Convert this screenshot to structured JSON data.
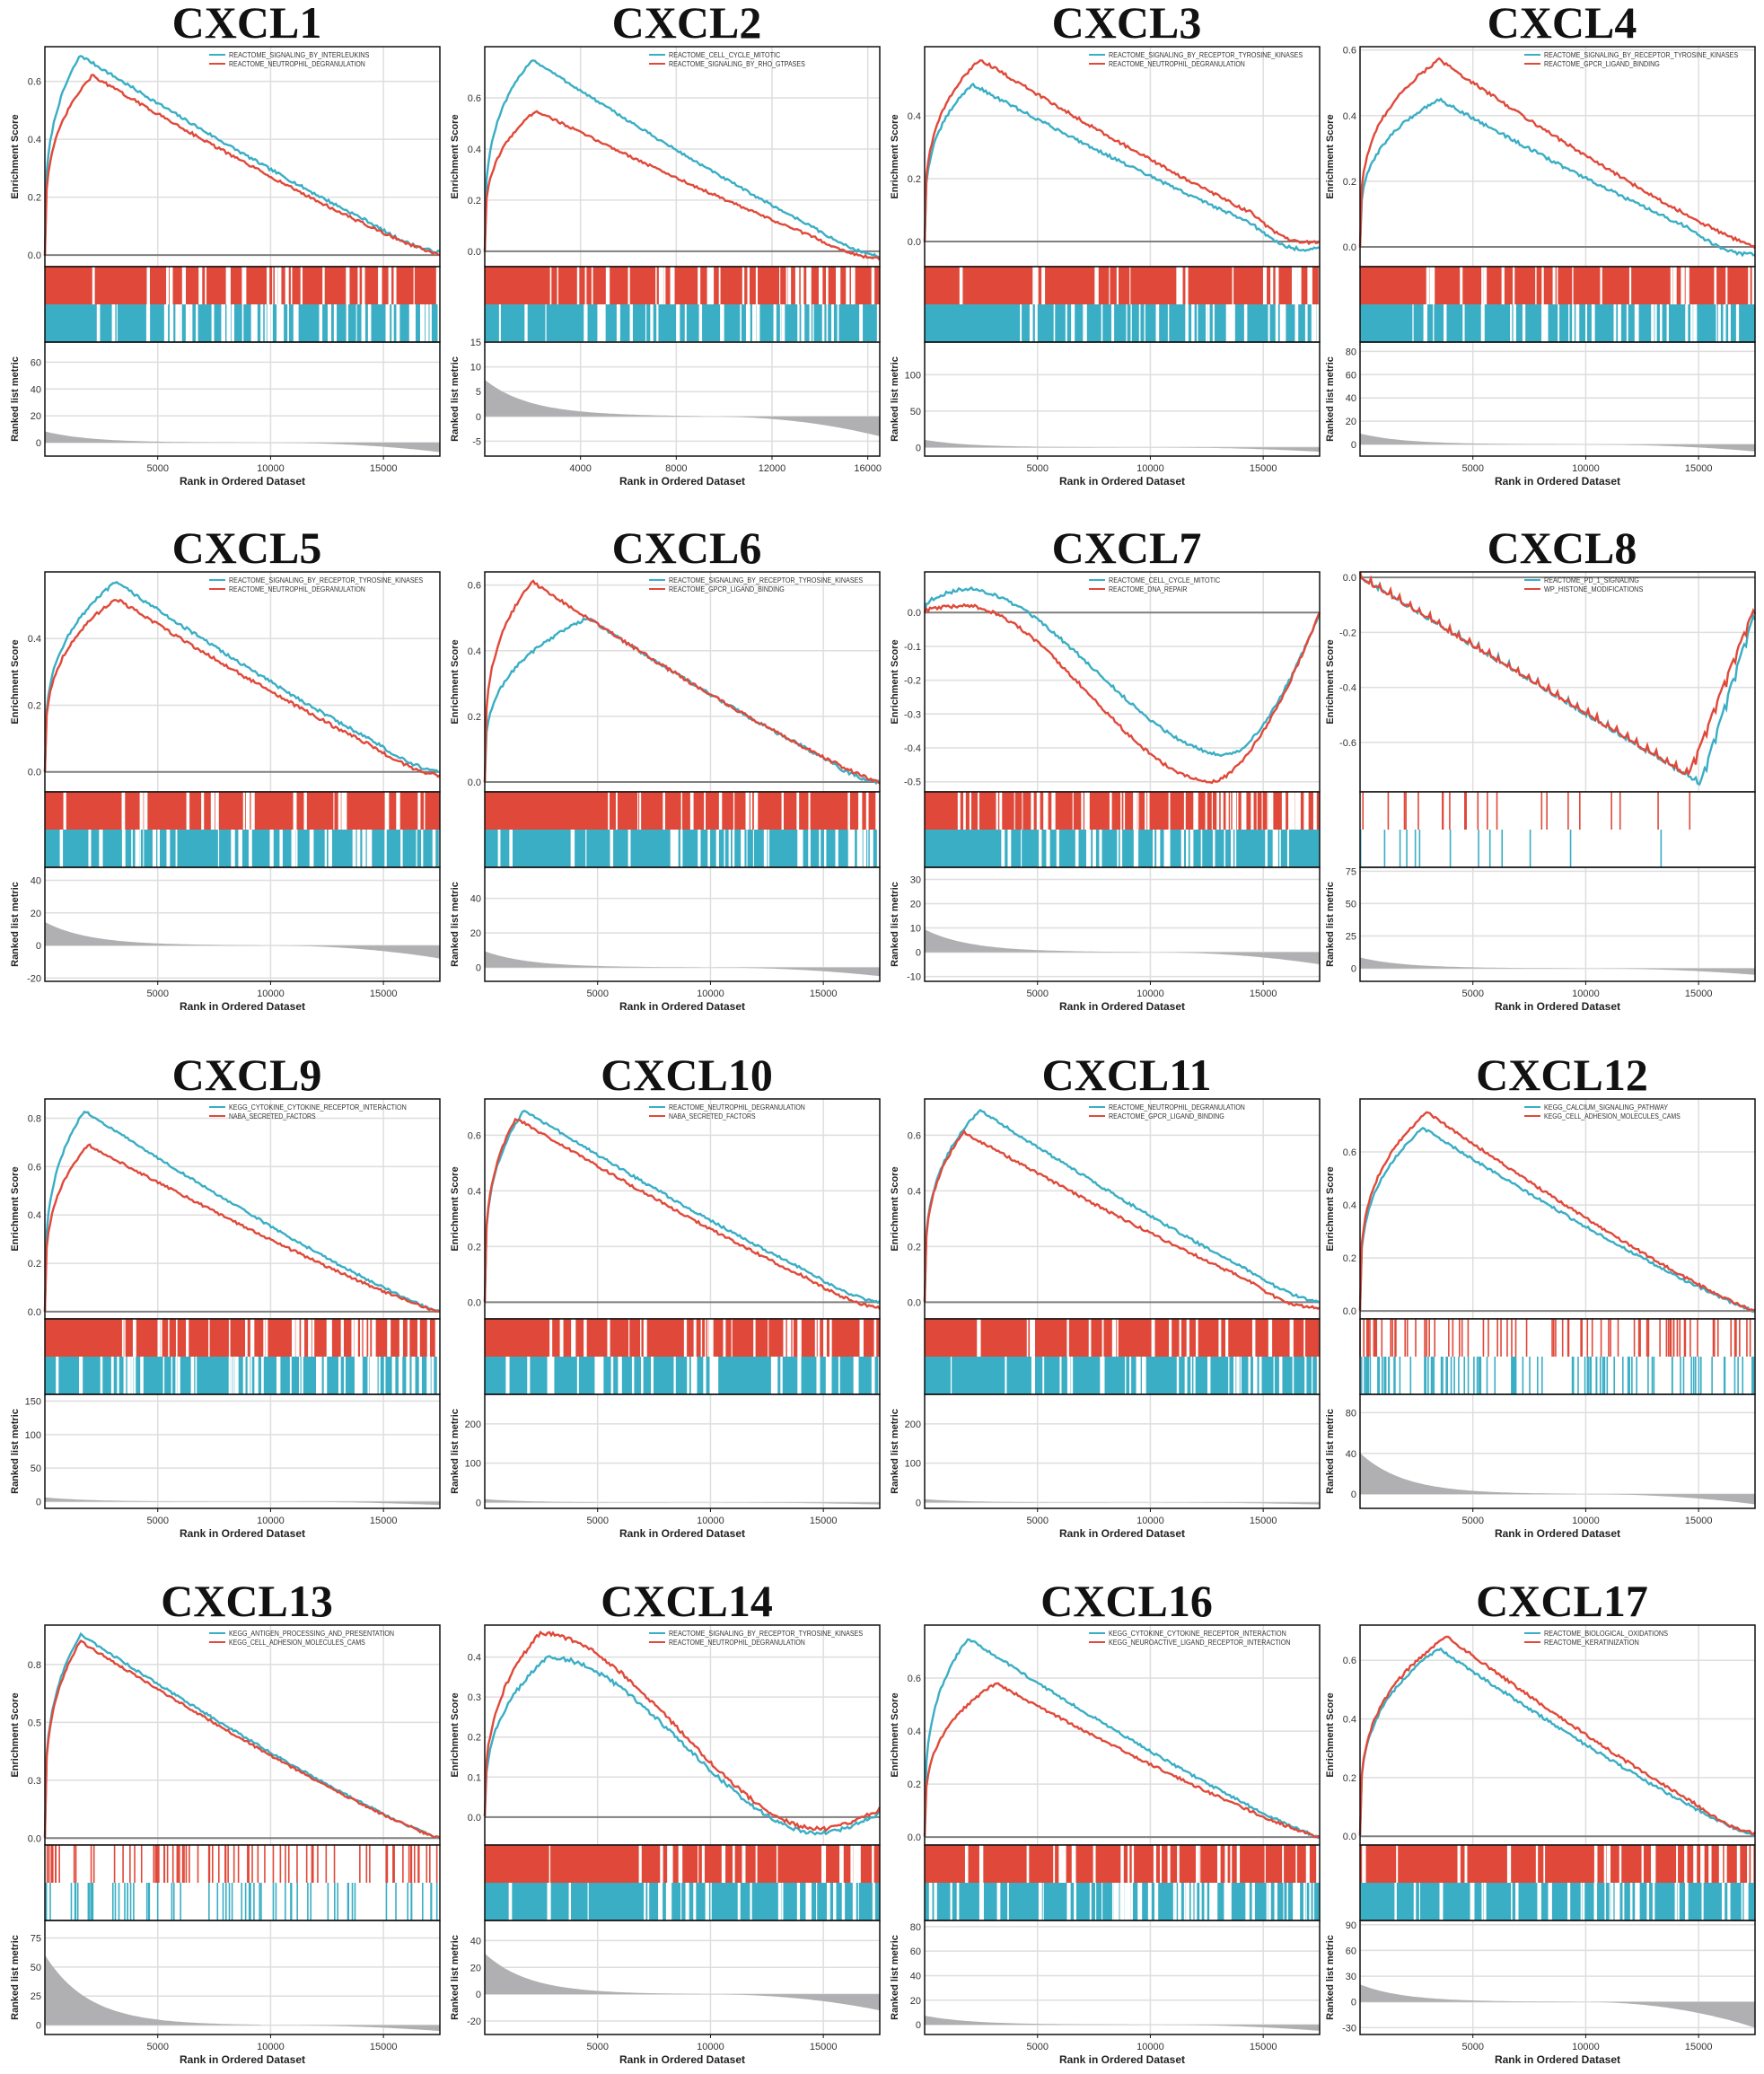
{
  "shared": {
    "es_ylabel": "Enrichment Score",
    "rank_ylabel": "Ranked list metric",
    "xlabel": "Rank in Ordered Dataset",
    "colors": {
      "series1": "#3aaec4",
      "series2": "#e0493a",
      "zero_line": "#7f7f7f",
      "metric_fill": "#b0b0b3",
      "grid": "#dedede"
    }
  },
  "chart_data": [
    {
      "type": "line",
      "title": "CXCL1",
      "series": [
        {
          "name": "REACTOME_SIGNALING_BY_INTERLEUKINS",
          "peak": 0.69,
          "peak_at": 0.09,
          "end": 0.01,
          "min": 0.0,
          "density": 0.55,
          "lead": 0.05
        },
        {
          "name": "REACTOME_NEUTROPHIL_DEGRANULATION",
          "peak": 0.62,
          "peak_at": 0.12,
          "end": 0.0,
          "min": 0.0,
          "density": 0.8,
          "lead": 0.0
        }
      ],
      "es_ylim": [
        -0.04,
        0.72
      ],
      "es_ticks": [
        0.0,
        0.2,
        0.4,
        0.6
      ],
      "rank_ylim": [
        -10,
        75
      ],
      "rank_ticks": [
        0,
        20,
        40,
        60
      ],
      "metric_top": 8,
      "metric_bottom": -7,
      "x_max": 17500,
      "x_ticks": [
        5000,
        10000,
        15000
      ]
    },
    {
      "type": "line",
      "title": "CXCL2",
      "series": [
        {
          "name": "REACTOME_CELL_CYCLE_MITOTIC",
          "peak": 0.75,
          "peak_at": 0.12,
          "end": -0.02,
          "min": -0.03,
          "density": 0.7,
          "lead": 0.0
        },
        {
          "name": "REACTOME_SIGNALING_BY_RHO_GTPASES",
          "peak": 0.55,
          "peak_at": 0.13,
          "end": -0.03,
          "min": -0.04,
          "density": 0.7,
          "lead": 0.0
        }
      ],
      "es_ylim": [
        -0.06,
        0.8
      ],
      "es_ticks": [
        0.0,
        0.2,
        0.4,
        0.6
      ],
      "rank_ylim": [
        -8,
        15
      ],
      "rank_ticks": [
        -5,
        0,
        5,
        10,
        15
      ],
      "metric_top": 7,
      "metric_bottom": -4,
      "x_max": 16500,
      "x_ticks": [
        4000,
        8000,
        12000,
        16000
      ]
    },
    {
      "type": "line",
      "title": "CXCL3",
      "series": [
        {
          "name": "REACTOME_SIGNALING_BY_RECEPTOR_TYROSINE_KINASES",
          "peak": 0.5,
          "peak_at": 0.12,
          "end": -0.02,
          "min": -0.05,
          "density": 0.7,
          "lead": 0.0
        },
        {
          "name": "REACTOME_NEUTROPHIL_DEGRANULATION",
          "peak": 0.58,
          "peak_at": 0.14,
          "end": 0.0,
          "min": -0.03,
          "density": 0.85,
          "lead": 0.0
        }
      ],
      "es_ylim": [
        -0.08,
        0.62
      ],
      "es_ticks": [
        0.0,
        0.2,
        0.4
      ],
      "rank_ylim": [
        -12,
        145
      ],
      "rank_ticks": [
        0,
        50,
        100
      ],
      "metric_top": 10,
      "metric_bottom": -6,
      "x_max": 17500,
      "x_ticks": [
        5000,
        10000,
        15000
      ]
    },
    {
      "type": "line",
      "title": "CXCL4",
      "series": [
        {
          "name": "REACTOME_SIGNALING_BY_RECEPTOR_TYROSINE_KINASES",
          "peak": 0.45,
          "peak_at": 0.2,
          "end": -0.02,
          "min": -0.04,
          "density": 0.7,
          "lead": 0.0
        },
        {
          "name": "REACTOME_GPCR_LIGAND_BINDING",
          "peak": 0.57,
          "peak_at": 0.2,
          "end": 0.0,
          "min": 0.0,
          "density": 0.85,
          "lead": 0.0
        }
      ],
      "es_ylim": [
        -0.06,
        0.61
      ],
      "es_ticks": [
        0.0,
        0.2,
        0.4,
        0.6
      ],
      "rank_ylim": [
        -10,
        88
      ],
      "rank_ticks": [
        0,
        20,
        40,
        60,
        80
      ],
      "metric_top": 9,
      "metric_bottom": -6,
      "x_max": 17500,
      "x_ticks": [
        5000,
        10000,
        15000
      ]
    },
    {
      "type": "line",
      "title": "CXCL5",
      "series": [
        {
          "name": "REACTOME_SIGNALING_BY_RECEPTOR_TYROSINE_KINASES",
          "peak": 0.57,
          "peak_at": 0.18,
          "end": 0.0,
          "min": -0.01,
          "density": 0.7,
          "lead": 0.0
        },
        {
          "name": "REACTOME_NEUTROPHIL_DEGRANULATION",
          "peak": 0.52,
          "peak_at": 0.18,
          "end": -0.01,
          "min": -0.02,
          "density": 0.85,
          "lead": 0.0
        }
      ],
      "es_ylim": [
        -0.06,
        0.6
      ],
      "es_ticks": [
        0.0,
        0.2,
        0.4
      ],
      "rank_ylim": [
        -22,
        48
      ],
      "rank_ticks": [
        -20,
        0,
        20,
        40
      ],
      "metric_top": 14,
      "metric_bottom": -8,
      "x_max": 17500,
      "x_ticks": [
        5000,
        10000,
        15000
      ]
    },
    {
      "type": "line",
      "title": "CXCL6",
      "series": [
        {
          "name": "REACTOME_SIGNALING_BY_RECEPTOR_TYROSINE_KINASES",
          "peak": 0.5,
          "peak_at": 0.26,
          "end": 0.0,
          "min": -0.01,
          "density": 0.7,
          "lead": 0.0
        },
        {
          "name": "REACTOME_GPCR_LIGAND_BINDING",
          "peak": 0.61,
          "peak_at": 0.12,
          "end": 0.0,
          "min": 0.0,
          "density": 0.85,
          "lead": 0.0
        }
      ],
      "es_ylim": [
        -0.03,
        0.64
      ],
      "es_ticks": [
        0.0,
        0.2,
        0.4,
        0.6
      ],
      "rank_ylim": [
        -8,
        58
      ],
      "rank_ticks": [
        0,
        20,
        40
      ],
      "metric_top": 9,
      "metric_bottom": -5,
      "x_max": 17500,
      "x_ticks": [
        5000,
        10000,
        15000
      ]
    },
    {
      "type": "line",
      "title": "CXCL7",
      "series": [
        {
          "name": "REACTOME_CELL_CYCLE_MITOTIC",
          "peak": 0.07,
          "peak_at": 0.1,
          "min": -0.42,
          "min_at": 0.77,
          "end": 0.0,
          "density": 0.75,
          "lead": 0.0
        },
        {
          "name": "REACTOME_DNA_REPAIR",
          "peak": 0.02,
          "peak_at": 0.1,
          "min": -0.5,
          "min_at": 0.73,
          "end": 0.0,
          "density": 0.45,
          "lead": 0.0
        }
      ],
      "es_ylim": [
        -0.53,
        0.12
      ],
      "es_ticks": [
        0.0,
        -0.1,
        -0.2,
        -0.3,
        -0.4,
        -0.5
      ],
      "rank_ylim": [
        -12,
        35
      ],
      "rank_ticks": [
        -10,
        0,
        10,
        20,
        30
      ],
      "metric_top": 9,
      "metric_bottom": -5,
      "x_max": 17500,
      "x_ticks": [
        5000,
        10000,
        15000
      ]
    },
    {
      "type": "line",
      "title": "CXCL8",
      "series": [
        {
          "name": "REACTOME_PD_1_SIGNALING",
          "peak": 0.0,
          "peak_at": 0.0,
          "min": -0.75,
          "min_at": 0.86,
          "end": -0.12,
          "density": 0.05,
          "lead": 0.0
        },
        {
          "name": "WP_HISTONE_MODIFICATIONS",
          "peak": 0.0,
          "peak_at": 0.0,
          "min": -0.72,
          "min_at": 0.83,
          "end": -0.1,
          "density": 0.08,
          "lead": 0.0
        }
      ],
      "es_ylim": [
        -0.78,
        0.02
      ],
      "es_ticks": [
        0.0,
        -0.2,
        -0.4,
        -0.6
      ],
      "rank_ylim": [
        -10,
        78
      ],
      "rank_ticks": [
        0,
        25,
        50,
        75
      ],
      "metric_top": 8,
      "metric_bottom": -5,
      "x_max": 17500,
      "x_ticks": [
        5000,
        10000,
        15000
      ]
    },
    {
      "type": "line",
      "title": "CXCL9",
      "series": [
        {
          "name": "KEGG_CYTOKINE_CYTOKINE_RECEPTOR_INTERACTION",
          "peak": 0.83,
          "peak_at": 0.1,
          "end": 0.0,
          "min": 0.0,
          "density": 0.45,
          "lead": 0.0
        },
        {
          "name": "NABA_SECRETED_FACTORS",
          "peak": 0.69,
          "peak_at": 0.11,
          "end": 0.0,
          "min": 0.0,
          "density": 0.7,
          "lead": 0.0
        }
      ],
      "es_ylim": [
        -0.03,
        0.88
      ],
      "es_ticks": [
        0.0,
        0.2,
        0.4,
        0.6,
        0.8
      ],
      "rank_ylim": [
        -10,
        160
      ],
      "rank_ticks": [
        0,
        50,
        100,
        150
      ],
      "metric_top": 6,
      "metric_bottom": -5,
      "x_max": 17500,
      "x_ticks": [
        5000,
        10000,
        15000
      ]
    },
    {
      "type": "line",
      "title": "CXCL10",
      "series": [
        {
          "name": "REACTOME_NEUTROPHIL_DEGRANULATION",
          "peak": 0.69,
          "peak_at": 0.1,
          "end": 0.0,
          "min": -0.01,
          "density": 0.7,
          "lead": 0.0
        },
        {
          "name": "NABA_SECRETED_FACTORS",
          "peak": 0.66,
          "peak_at": 0.08,
          "end": -0.02,
          "min": -0.03,
          "density": 0.8,
          "lead": 0.0
        }
      ],
      "es_ylim": [
        -0.06,
        0.73
      ],
      "es_ticks": [
        0.0,
        0.2,
        0.4,
        0.6
      ],
      "rank_ylim": [
        -15,
        275
      ],
      "rank_ticks": [
        0,
        100,
        200
      ],
      "metric_top": 8,
      "metric_bottom": -5,
      "x_max": 17500,
      "x_ticks": [
        5000,
        10000,
        15000
      ]
    },
    {
      "type": "line",
      "title": "CXCL11",
      "series": [
        {
          "name": "REACTOME_NEUTROPHIL_DEGRANULATION",
          "peak": 0.69,
          "peak_at": 0.14,
          "end": 0.0,
          "min": -0.01,
          "density": 0.75,
          "lead": 0.0
        },
        {
          "name": "REACTOME_GPCR_LIGAND_BINDING",
          "peak": 0.61,
          "peak_at": 0.1,
          "end": -0.02,
          "min": -0.04,
          "density": 0.85,
          "lead": 0.0
        }
      ],
      "es_ylim": [
        -0.06,
        0.73
      ],
      "es_ticks": [
        0.0,
        0.2,
        0.4,
        0.6
      ],
      "rank_ylim": [
        -15,
        275
      ],
      "rank_ticks": [
        0,
        100,
        200
      ],
      "metric_top": 8,
      "metric_bottom": -5,
      "x_max": 17500,
      "x_ticks": [
        5000,
        10000,
        15000
      ]
    },
    {
      "type": "line",
      "title": "CXCL12",
      "series": [
        {
          "name": "KEGG_CALCIUM_SIGNALING_PATHWAY",
          "peak": 0.69,
          "peak_at": 0.16,
          "end": 0.0,
          "min": 0.0,
          "density": 0.35,
          "lead": 0.0
        },
        {
          "name": "KEGG_CELL_ADHESION_MOLECULES_CAMS",
          "peak": 0.75,
          "peak_at": 0.17,
          "end": 0.0,
          "min": 0.0,
          "density": 0.3,
          "lead": 0.0
        }
      ],
      "es_ylim": [
        -0.03,
        0.8
      ],
      "es_ticks": [
        0.0,
        0.2,
        0.4,
        0.6
      ],
      "rank_ylim": [
        -14,
        98
      ],
      "rank_ticks": [
        0,
        40,
        80
      ],
      "metric_top": 40,
      "metric_bottom": -10,
      "x_max": 17500,
      "x_ticks": [
        5000,
        10000,
        15000
      ]
    },
    {
      "type": "line",
      "title": "CXCL13",
      "series": [
        {
          "name": "KEGG_ANTIGEN_PROCESSING_AND_PRESENTATION",
          "peak": 0.88,
          "peak_at": 0.09,
          "end": 0.0,
          "min": 0.0,
          "density": 0.25,
          "lead": 0.0
        },
        {
          "name": "KEGG_CELL_ADHESION_MOLECULES_CAMS",
          "peak": 0.85,
          "peak_at": 0.09,
          "end": 0.0,
          "min": 0.0,
          "density": 0.3,
          "lead": 0.0
        }
      ],
      "es_ylim": [
        -0.03,
        0.92
      ],
      "es_ticks": [
        0.0,
        0.25,
        0.5,
        0.75
      ],
      "rank_ylim": [
        -8,
        90
      ],
      "rank_ticks": [
        0,
        25,
        50,
        75
      ],
      "metric_top": 60,
      "metric_bottom": -5,
      "x_max": 17500,
      "x_ticks": [
        5000,
        10000,
        15000
      ]
    },
    {
      "type": "line",
      "title": "CXCL14",
      "series": [
        {
          "name": "REACTOME_SIGNALING_BY_RECEPTOR_TYROSINE_KINASES",
          "peak": 0.4,
          "peak_at": 0.16,
          "min": -0.04,
          "min_at": 0.85,
          "end": 0.01,
          "density": 0.75,
          "lead": 0.0
        },
        {
          "name": "REACTOME_NEUTROPHIL_DEGRANULATION",
          "peak": 0.46,
          "peak_at": 0.14,
          "min": -0.03,
          "min_at": 0.85,
          "end": 0.02,
          "density": 0.85,
          "lead": 0.0
        }
      ],
      "es_ylim": [
        -0.07,
        0.48
      ],
      "es_ticks": [
        0.0,
        0.1,
        0.2,
        0.3,
        0.4
      ],
      "rank_ylim": [
        -30,
        55
      ],
      "rank_ticks": [
        -20,
        0,
        20,
        40
      ],
      "metric_top": 30,
      "metric_bottom": -12,
      "x_max": 17500,
      "x_ticks": [
        5000,
        10000,
        15000
      ]
    },
    {
      "type": "line",
      "title": "CXCL16",
      "series": [
        {
          "name": "KEGG_CYTOKINE_CYTOKINE_RECEPTOR_INTERACTION",
          "peak": 0.75,
          "peak_at": 0.11,
          "end": 0.0,
          "min": 0.0,
          "density": 0.5,
          "lead": 0.0
        },
        {
          "name": "KEGG_NEUROACTIVE_LIGAND_RECEPTOR_INTERACTION",
          "peak": 0.58,
          "peak_at": 0.18,
          "end": 0.0,
          "min": 0.0,
          "density": 0.8,
          "lead": 0.0
        }
      ],
      "es_ylim": [
        -0.03,
        0.8
      ],
      "es_ticks": [
        0.0,
        0.2,
        0.4,
        0.6
      ],
      "rank_ylim": [
        -8,
        85
      ],
      "rank_ticks": [
        0,
        20,
        40,
        60,
        80
      ],
      "metric_top": 7,
      "metric_bottom": -5,
      "x_max": 17500,
      "x_ticks": [
        5000,
        10000,
        15000
      ]
    },
    {
      "type": "line",
      "title": "CXCL17",
      "series": [
        {
          "name": "REACTOME_BIOLOGICAL_OXIDATIONS",
          "peak": 0.64,
          "peak_at": 0.2,
          "end": 0.0,
          "min": 0.0,
          "density": 0.7,
          "lead": 0.0
        },
        {
          "name": "REACTOME_KERATINIZATION",
          "peak": 0.68,
          "peak_at": 0.22,
          "end": 0.01,
          "min": 0.0,
          "density": 0.8,
          "lead": 0.0
        }
      ],
      "es_ylim": [
        -0.03,
        0.72
      ],
      "es_ticks": [
        0.0,
        0.2,
        0.4,
        0.6
      ],
      "rank_ylim": [
        -38,
        95
      ],
      "rank_ticks": [
        -30,
        0,
        30,
        60,
        90
      ],
      "metric_top": 20,
      "metric_bottom": -30,
      "x_max": 17500,
      "x_ticks": [
        5000,
        10000,
        15000
      ]
    }
  ]
}
